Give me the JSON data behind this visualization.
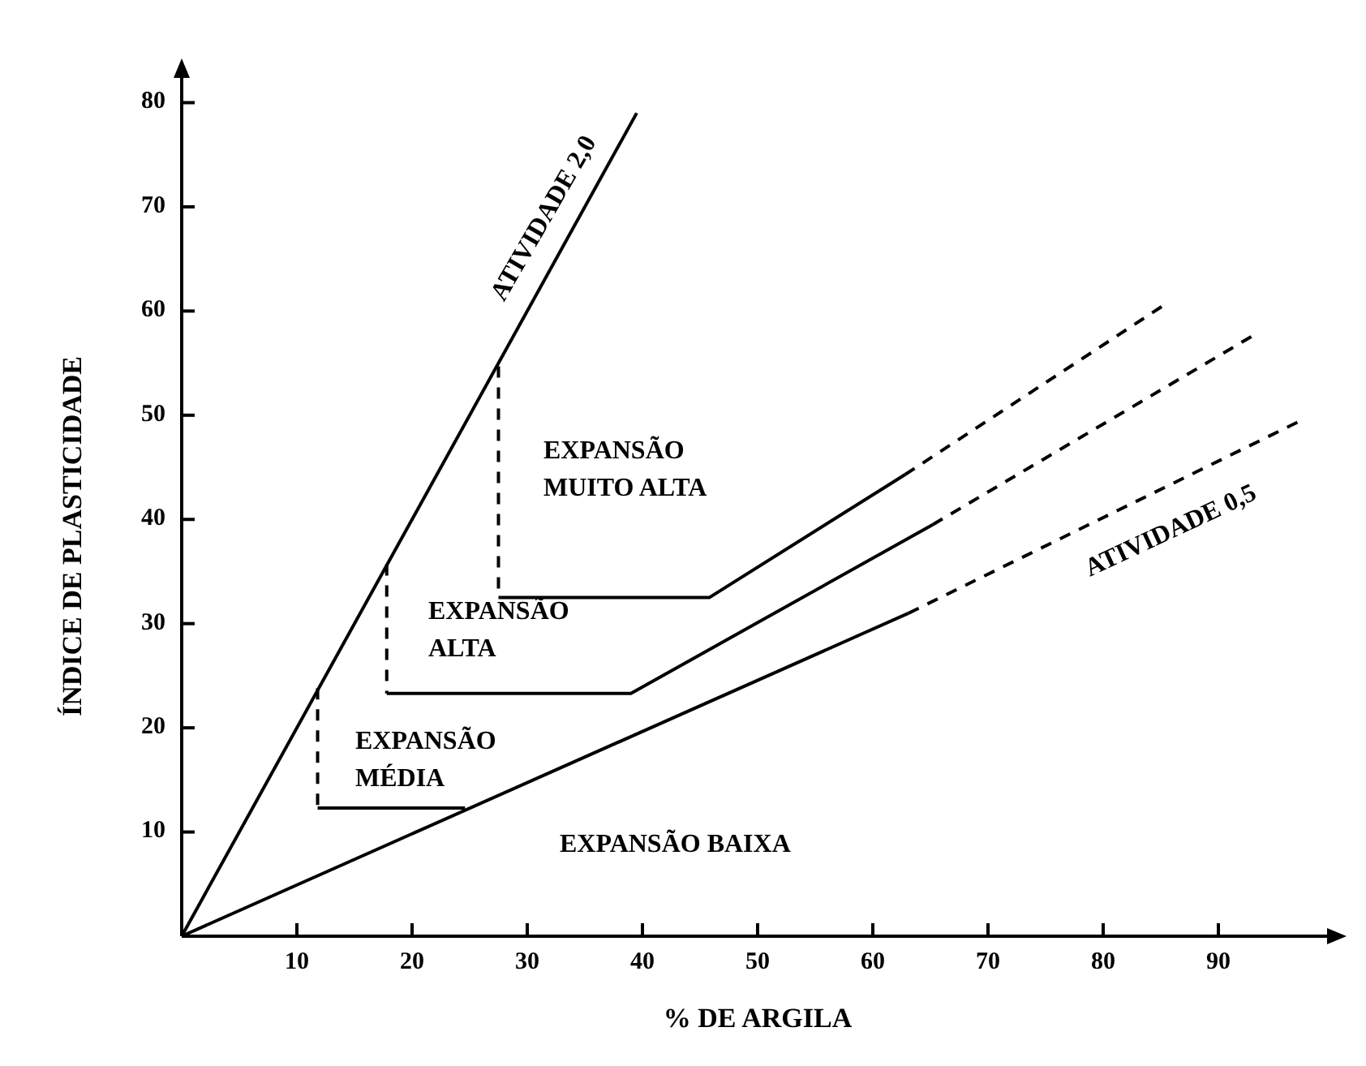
{
  "chart_data": {
    "type": "line",
    "xlabel": "% DE ARGILA",
    "ylabel": "ÍNDICE DE PLASTICIDADE",
    "xlim": [
      0,
      100
    ],
    "ylim": [
      0,
      83
    ],
    "xticks": [
      10,
      20,
      30,
      40,
      50,
      60,
      70,
      80,
      90
    ],
    "yticks": [
      10,
      20,
      30,
      40,
      50,
      60,
      70,
      80
    ],
    "grid": false,
    "marker": "none",
    "series": [
      {
        "color": "#000000",
        "line_style": "solid",
        "x": [
          0,
          39.5
        ],
        "values": [
          0,
          79
        ]
      },
      {
        "color": "#000000",
        "line_style": "solid",
        "x": [
          0,
          63.1
        ],
        "values": [
          0,
          31
        ]
      },
      {
        "color": "#000000",
        "line_style": "dashed",
        "x": [
          63.1,
          97
        ],
        "values": [
          31,
          49.4
        ]
      },
      {
        "color": "#000000",
        "line_style": "dashed",
        "x": [
          11.8,
          11.8
        ],
        "values": [
          23.8,
          12.3
        ]
      },
      {
        "color": "#000000",
        "line_style": "solid",
        "x": [
          11.8,
          24.6
        ],
        "values": [
          12.3,
          12.3
        ]
      },
      {
        "color": "#000000",
        "line_style": "dashed",
        "x": [
          17.8,
          17.8
        ],
        "values": [
          35.7,
          23.3
        ]
      },
      {
        "color": "#000000",
        "line_style": "solid",
        "x": [
          17.8,
          39,
          65.2
        ],
        "values": [
          23.3,
          23.3,
          39.5
        ]
      },
      {
        "color": "#000000",
        "line_style": "dashed",
        "x": [
          65.2,
          93.1
        ],
        "values": [
          39.5,
          57.7
        ]
      },
      {
        "color": "#000000",
        "line_style": "dashed",
        "x": [
          27.5,
          27.5
        ],
        "values": [
          54.7,
          32.5
        ]
      },
      {
        "color": "#000000",
        "line_style": "solid",
        "x": [
          27.5,
          45.8,
          62.8
        ],
        "values": [
          32.5,
          32.5,
          44.3
        ]
      },
      {
        "color": "#000000",
        "line_style": "dashed",
        "x": [
          62.8,
          85.6
        ],
        "values": [
          44.3,
          60.8
        ]
      }
    ],
    "annotations": [
      "ATIVIDADE 2,0",
      "ATIVIDADE 0,5",
      "EXPANSÃO\nMUITO ALTA",
      "EXPANSÃO\nALTA",
      "EXPANSÃO\nMÉDIA",
      "EXPANSÃO BAIXA"
    ]
  }
}
